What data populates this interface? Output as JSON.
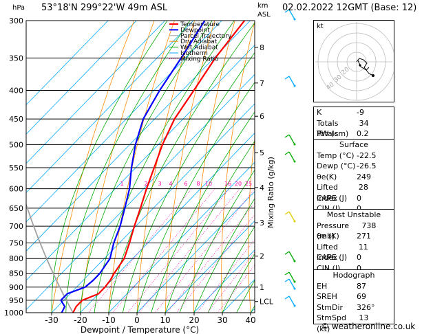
{
  "header": {
    "location": "53°18'N  299°22'W  49m  ASL",
    "datetime": "02.02.2022  12GMT  (Base: 12)",
    "p_unit": "hPa",
    "km_label": "km",
    "asl_label": "ASL"
  },
  "chart_data": {
    "type": "line",
    "title": "53°18'N  299°22'W  49m  ASL",
    "xlabel": "Dewpoint / Temperature (°C)",
    "ylabel": "hPa",
    "right_label": "Mixing Ratio (g/kg)",
    "x_ticks": [
      -30,
      -20,
      -10,
      0,
      10,
      20,
      30,
      40
    ],
    "pressure_levels": [
      300,
      350,
      400,
      450,
      500,
      550,
      600,
      650,
      700,
      750,
      800,
      850,
      900,
      950,
      1000
    ],
    "km_ticks": [
      {
        "label": "8",
        "p": 335
      },
      {
        "label": "7",
        "p": 388
      },
      {
        "label": "6",
        "p": 445
      },
      {
        "label": "5",
        "p": 517
      },
      {
        "label": "4",
        "p": 597
      },
      {
        "label": "3",
        "p": 690
      },
      {
        "label": "2",
        "p": 792
      },
      {
        "label": "1",
        "p": 900
      },
      {
        "label": "LCL",
        "p": 955
      }
    ],
    "mixing_ratio_labels": [
      "1",
      "2",
      "3",
      "4",
      "6",
      "8",
      "10",
      "16",
      "20",
      "25"
    ],
    "mixing_ratio_values": [
      1,
      2,
      3,
      4,
      6,
      8,
      10,
      16,
      20,
      25
    ],
    "legend": [
      "Temperature",
      "Dewpoint",
      "Parcel Trajectory",
      "Dry Adiabat",
      "Wet Adiabat",
      "Isotherm",
      "Mixing Ratio"
    ],
    "colors": {
      "temperature": "#ff0000",
      "dewpoint": "#0000ff",
      "parcel": "#a0a0a0",
      "dry_adiabat": "#ff8c00",
      "wet_adiabat": "#00aa00",
      "isotherm": "#00aaff",
      "mixing_ratio": "#ff00aa"
    },
    "series": [
      {
        "name": "Temperature",
        "points": [
          [
            1000,
            -22.5
          ],
          [
            975,
            -23.5
          ],
          [
            950,
            -23.5
          ],
          [
            925,
            -20
          ],
          [
            900,
            -20
          ],
          [
            875,
            -20.5
          ],
          [
            850,
            -21.5
          ],
          [
            800,
            -23
          ],
          [
            750,
            -26.5
          ],
          [
            700,
            -30.5
          ],
          [
            650,
            -34.5
          ],
          [
            600,
            -39
          ],
          [
            550,
            -43.5
          ],
          [
            500,
            -48.5
          ],
          [
            450,
            -53
          ],
          [
            400,
            -56
          ],
          [
            350,
            -59.5
          ],
          [
            300,
            -62
          ],
          [
            280,
            -63
          ]
        ]
      },
      {
        "name": "Dewpoint",
        "points": [
          [
            1000,
            -26.5
          ],
          [
            975,
            -27.5
          ],
          [
            950,
            -31
          ],
          [
            925,
            -31
          ],
          [
            900,
            -27
          ],
          [
            875,
            -26.5
          ],
          [
            850,
            -26.5
          ],
          [
            800,
            -28
          ],
          [
            750,
            -32
          ],
          [
            700,
            -35.5
          ],
          [
            650,
            -40
          ],
          [
            600,
            -45
          ],
          [
            550,
            -51.5
          ],
          [
            500,
            -58
          ],
          [
            450,
            -64
          ],
          [
            400,
            -68
          ],
          [
            350,
            -71.5
          ],
          [
            300,
            -76
          ],
          [
            280,
            -77
          ]
        ]
      }
    ],
    "ylim": [
      300,
      1000
    ],
    "xlim": [
      -35,
      40
    ]
  },
  "hodograph": {
    "unit_label": "kt",
    "ring_labels": [
      "40",
      "30",
      "20"
    ]
  },
  "indices": [
    {
      "label": "K",
      "value": "-9"
    },
    {
      "label": "Totals Totals",
      "value": "34"
    },
    {
      "label": "PW (cm)",
      "value": "0.2"
    }
  ],
  "surface": {
    "title": "Surface",
    "rows": [
      {
        "label": "Temp (°C)",
        "value": "-22.5"
      },
      {
        "label": "Dewp (°C)",
        "value": "-26.5"
      },
      {
        "label": "θe(K)",
        "value": "249"
      },
      {
        "label": "Lifted Index",
        "value": "28"
      },
      {
        "label": "CAPE (J)",
        "value": "0"
      },
      {
        "label": "CIN (J)",
        "value": "0"
      }
    ]
  },
  "unstable": {
    "title": "Most Unstable",
    "rows": [
      {
        "label": "Pressure (mb)",
        "value": "738"
      },
      {
        "label": "θe (K)",
        "value": "271"
      },
      {
        "label": "Lifted Index",
        "value": "11"
      },
      {
        "label": "CAPE (J)",
        "value": "0"
      },
      {
        "label": "CIN (J)",
        "value": "0"
      }
    ]
  },
  "hodograph_table": {
    "title": "Hodograph",
    "rows": [
      {
        "label": "EH",
        "value": "87"
      },
      {
        "label": "SREH",
        "value": "69"
      },
      {
        "label": "StmDir",
        "value": "326°"
      },
      {
        "label": "StmSpd (kt)",
        "value": "13"
      }
    ]
  },
  "credit": "© weatheronline.co.uk"
}
